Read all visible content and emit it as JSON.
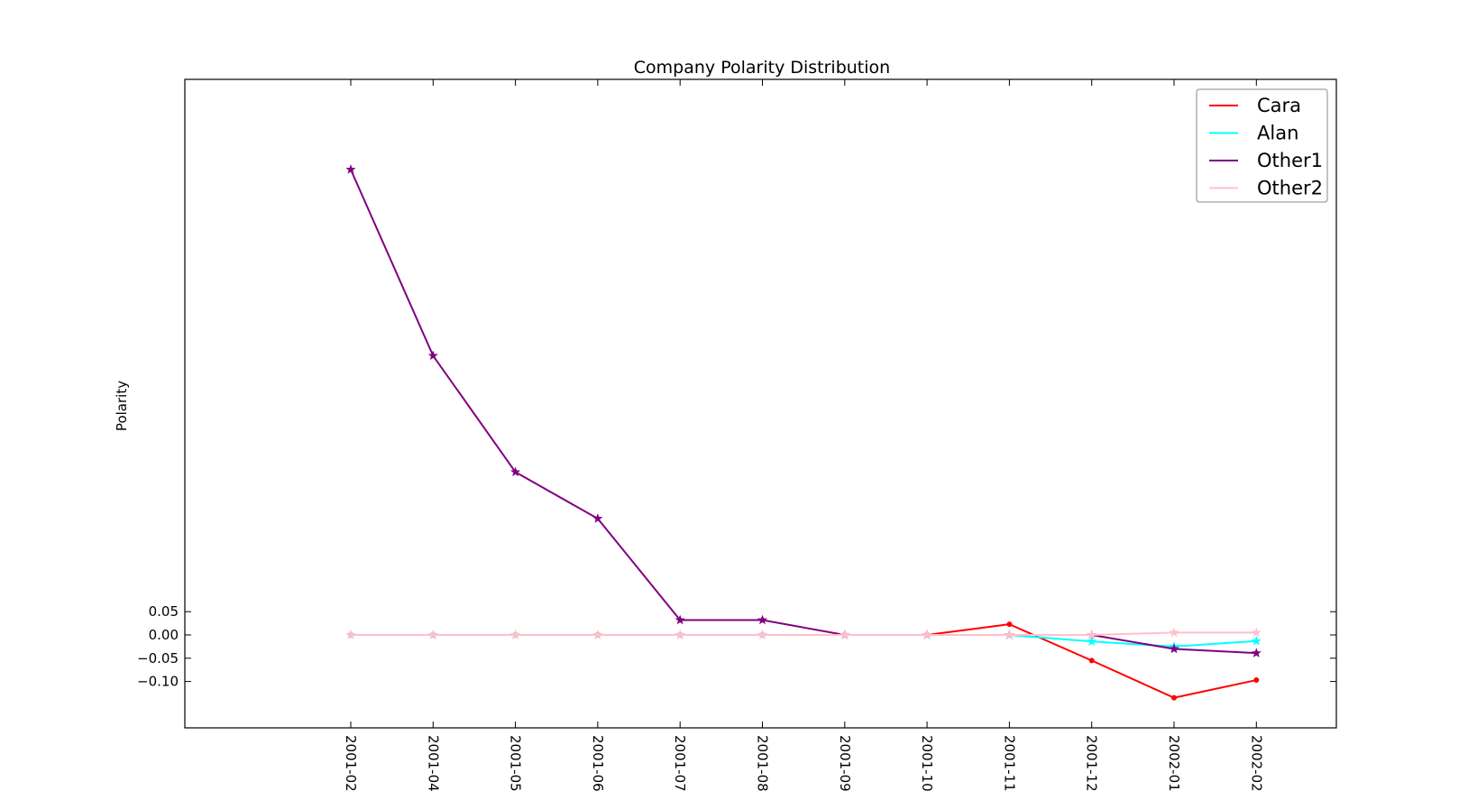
{
  "chart_data": {
    "type": "line",
    "title": "Company Polarity Distribution",
    "xlabel": "",
    "ylabel": "Polarity",
    "categories": [
      "2001-02",
      "2001-04",
      "2001-05",
      "2001-06",
      "2001-07",
      "2001-08",
      "2001-09",
      "2001-10",
      "2001-11",
      "2001-12",
      "2002-01",
      "2002-02"
    ],
    "yticks": [
      0.05,
      0.0,
      -0.05,
      -0.1
    ],
    "ytick_labels": [
      "0.05",
      "0.00",
      "−0.05",
      "−0.10"
    ],
    "ylim": [
      -0.195,
      1.2
    ],
    "grid": false,
    "legend_position": "top-right",
    "series": [
      {
        "name": "Cara",
        "color": "#ff0000",
        "marker": "dot",
        "values": [
          0,
          0,
          0,
          0,
          0,
          0,
          0,
          0,
          0.023,
          -0.055,
          -0.135,
          -0.097
        ]
      },
      {
        "name": "Alan",
        "color": "#00ffff",
        "marker": "star",
        "values": [
          0,
          0,
          0,
          0,
          0,
          0,
          0,
          0,
          0,
          -0.014,
          -0.025,
          -0.013
        ]
      },
      {
        "name": "Other1",
        "color": "#800080",
        "marker": "star",
        "values": [
          1.0,
          0.6,
          0.35,
          0.25,
          0.032,
          0.032,
          0,
          0,
          0,
          0,
          -0.03,
          -0.039
        ]
      },
      {
        "name": "Other2",
        "color": "#ffc0cb",
        "marker": "star",
        "values": [
          0,
          0,
          0,
          0,
          0,
          0,
          0,
          0,
          0,
          0,
          0.005,
          0.005
        ]
      }
    ]
  }
}
